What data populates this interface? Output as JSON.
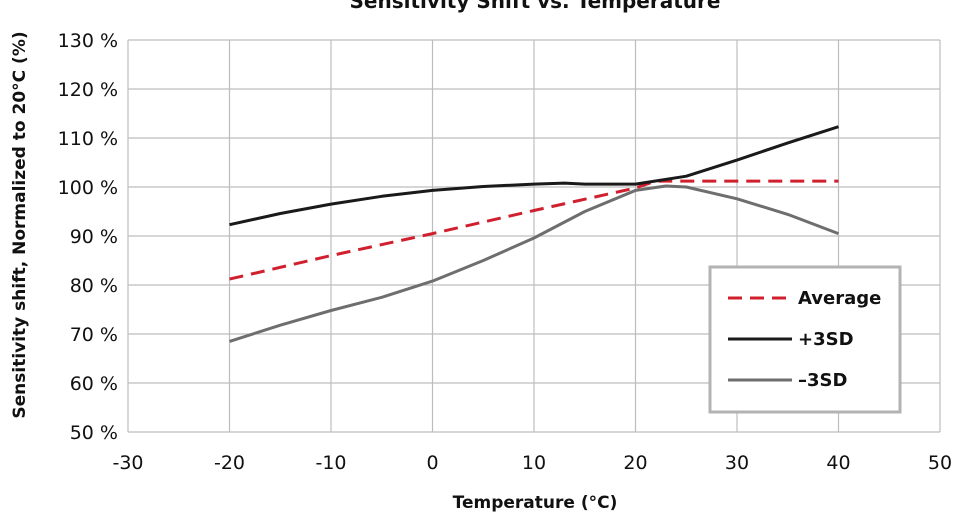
{
  "chart_data": {
    "type": "line",
    "title": "Sensitivity Shift vs. Temperature",
    "xlabel": "Temperature (°C)",
    "ylabel": "Sensitivity shift, Normalized to 20°C (%)",
    "xlim": [
      -30,
      50
    ],
    "ylim": [
      50,
      130
    ],
    "x_ticks": [
      -30,
      -20,
      -10,
      0,
      10,
      20,
      30,
      40,
      50
    ],
    "x_tick_labels": [
      "-30",
      "-20",
      "-10",
      "0",
      "10",
      "20",
      "30",
      "40",
      "50"
    ],
    "y_ticks": [
      50,
      60,
      70,
      80,
      90,
      100,
      110,
      120,
      130
    ],
    "y_tick_labels": [
      "50 %",
      "60 %",
      "70 %",
      "80 %",
      "90 %",
      "100 %",
      "110 %",
      "120 %",
      "130 %"
    ],
    "grid": true,
    "legend_position": "bottom-right",
    "series": [
      {
        "name": "Average",
        "color": "#d0202e",
        "style": "dashed",
        "points": [
          [
            -20,
            81.2
          ],
          [
            -10,
            86.0
          ],
          [
            0,
            90.5
          ],
          [
            10,
            95.2
          ],
          [
            20,
            99.8
          ],
          [
            22,
            101.2
          ],
          [
            30,
            101.2
          ],
          [
            40,
            101.2
          ]
        ]
      },
      {
        "name": "+3SD",
        "color": "#1a1a1a",
        "style": "solid",
        "points": [
          [
            -20,
            92.3
          ],
          [
            -15,
            94.6
          ],
          [
            -10,
            96.5
          ],
          [
            -5,
            98.1
          ],
          [
            0,
            99.3
          ],
          [
            5,
            100.1
          ],
          [
            10,
            100.6
          ],
          [
            13,
            100.8
          ],
          [
            15,
            100.6
          ],
          [
            20,
            100.6
          ],
          [
            25,
            102.2
          ],
          [
            30,
            105.5
          ],
          [
            35,
            109.0
          ],
          [
            40,
            112.3
          ]
        ]
      },
      {
        "name": "–3SD",
        "color": "#6e6e6e",
        "style": "solid",
        "points": [
          [
            -20,
            68.5
          ],
          [
            -15,
            71.8
          ],
          [
            -10,
            74.8
          ],
          [
            -5,
            77.5
          ],
          [
            0,
            80.8
          ],
          [
            5,
            85.0
          ],
          [
            10,
            89.6
          ],
          [
            15,
            95.0
          ],
          [
            20,
            99.3
          ],
          [
            23,
            100.2
          ],
          [
            25,
            100.0
          ],
          [
            30,
            97.6
          ],
          [
            35,
            94.4
          ],
          [
            40,
            90.5
          ]
        ]
      }
    ]
  }
}
